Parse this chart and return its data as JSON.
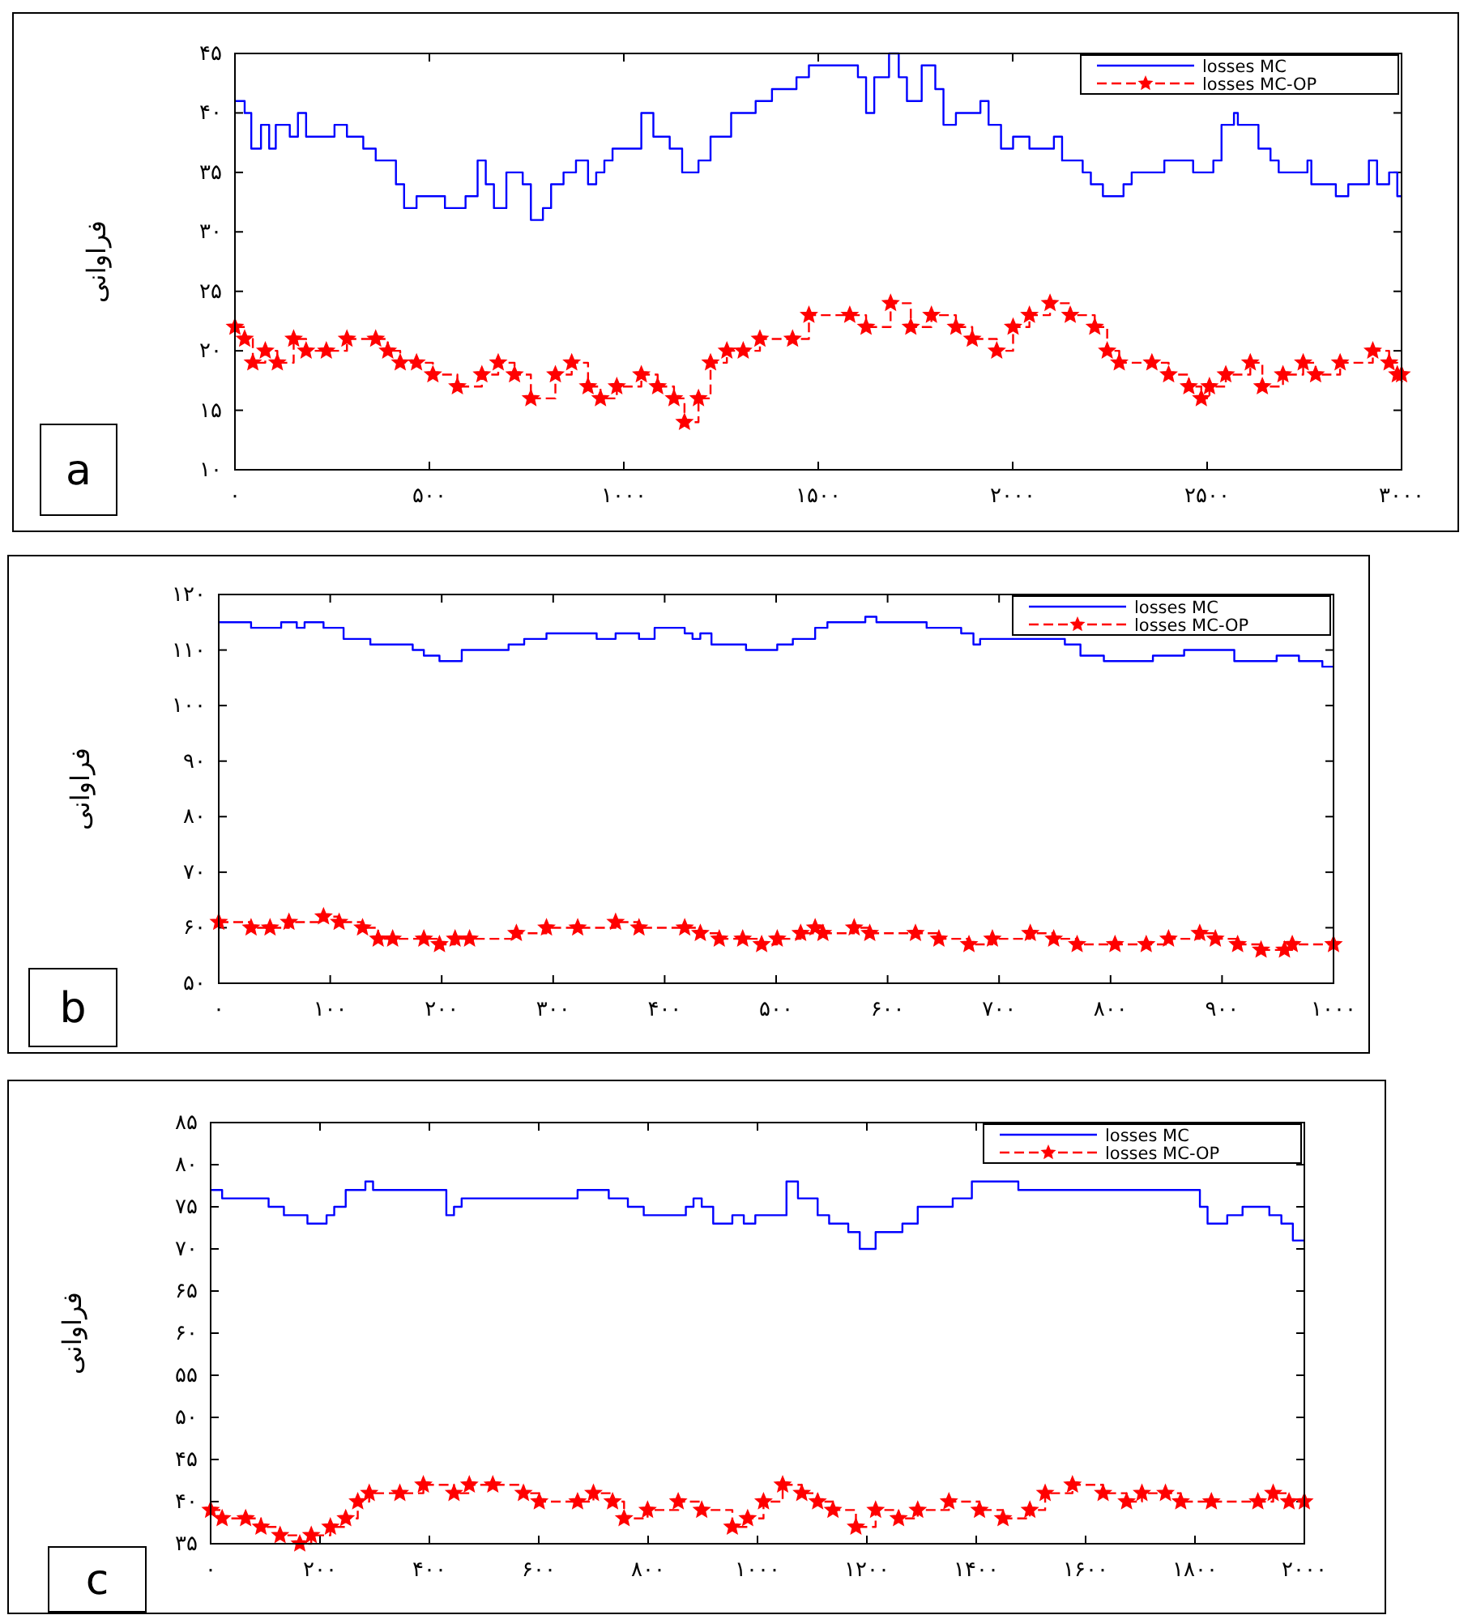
{
  "chart_data": [
    {
      "type": "step",
      "ylabel": "فراوانی",
      "annotations": [
        "a"
      ],
      "legend": "top right",
      "xlim": [
        0,
        3000
      ],
      "ylim": [
        10,
        45
      ],
      "xticks": [
        {
          "value": 0,
          "label": "۰"
        },
        {
          "value": 500,
          "label": "۵۰۰"
        },
        {
          "value": 1000,
          "label": "۱۰۰۰"
        },
        {
          "value": 1500,
          "label": "۱۵۰۰"
        },
        {
          "value": 2000,
          "label": "۲۰۰۰"
        },
        {
          "value": 2500,
          "label": "۲۵۰۰"
        },
        {
          "value": 3000,
          "label": "۳۰۰۰"
        }
      ],
      "yticks": [
        {
          "value": 10,
          "label": "۱۰"
        },
        {
          "value": 15,
          "label": "۱۵"
        },
        {
          "value": 20,
          "label": "۲۰"
        },
        {
          "value": 25,
          "label": "۲۵"
        },
        {
          "value": 30,
          "label": "۳۰"
        },
        {
          "value": 35,
          "label": "۳۵"
        },
        {
          "value": 40,
          "label": "۴۰"
        },
        {
          "value": 45,
          "label": "۴۵"
        }
      ],
      "series": [
        {
          "name": "losses MC",
          "color": "#0000ff",
          "line_style": "solid",
          "marker": "none",
          "x": [
            0,
            25,
            42,
            67,
            88,
            105,
            141,
            162,
            183,
            256,
            288,
            330,
            362,
            393,
            414,
            435,
            467,
            540,
            593,
            624,
            645,
            666,
            698,
            740,
            761,
            792,
            813,
            845,
            877,
            908,
            929,
            950,
            971,
            1045,
            1076,
            1118,
            1150,
            1192,
            1223,
            1276,
            1339,
            1381,
            1444,
            1476,
            1539,
            1602,
            1623,
            1644,
            1682,
            1707,
            1728,
            1766,
            1801,
            1822,
            1854,
            1917,
            1938,
            1970,
            2001,
            2043,
            2106,
            2127,
            2180,
            2201,
            2232,
            2285,
            2306,
            2390,
            2464,
            2516,
            2537,
            2569,
            2579,
            2632,
            2663,
            2684,
            2758,
            2768,
            2831,
            2863,
            2916,
            2937,
            2968,
            2989,
            3000
          ],
          "values": [
            41,
            40,
            37,
            39,
            37,
            39,
            38,
            40,
            38,
            39,
            38,
            37,
            36,
            36,
            34,
            32,
            33,
            32,
            33,
            36,
            34,
            32,
            35,
            34,
            31,
            32,
            34,
            35,
            36,
            34,
            35,
            36,
            37,
            40,
            38,
            37,
            35,
            36,
            38,
            40,
            41,
            42,
            43,
            44,
            44,
            43,
            40,
            43,
            45,
            43,
            41,
            44,
            42,
            39,
            40,
            41,
            39,
            37,
            38,
            37,
            38,
            36,
            35,
            34,
            33,
            34,
            35,
            36,
            35,
            36,
            39,
            40,
            39,
            37,
            36,
            35,
            36,
            34,
            33,
            34,
            36,
            34,
            35,
            33,
            33
          ]
        },
        {
          "name": "losses MC-OP",
          "color": "#ff0000",
          "line_style": "dashed",
          "marker": "star",
          "x": [
            0,
            25,
            46,
            78,
            109,
            151,
            183,
            235,
            288,
            362,
            393,
            425,
            467,
            509,
            572,
            635,
            677,
            719,
            761,
            824,
            866,
            908,
            940,
            982,
            1045,
            1087,
            1129,
            1156,
            1192,
            1223,
            1265,
            1307,
            1350,
            1434,
            1476,
            1581,
            1623,
            1686,
            1738,
            1791,
            1854,
            1896,
            1959,
            2001,
            2043,
            2096,
            2148,
            2211,
            2243,
            2274,
            2358,
            2401,
            2453,
            2485,
            2506,
            2548,
            2611,
            2642,
            2695,
            2747,
            2779,
            2842,
            2926,
            2968,
            2989,
            3000
          ],
          "values": [
            22,
            21,
            19,
            20,
            19,
            21,
            20,
            20,
            21,
            21,
            20,
            19,
            19,
            18,
            17,
            18,
            19,
            18,
            16,
            18,
            19,
            17,
            16,
            17,
            18,
            17,
            16,
            14,
            16,
            19,
            20,
            20,
            21,
            21,
            23,
            23,
            22,
            24,
            22,
            23,
            22,
            21,
            20,
            22,
            23,
            24,
            23,
            22,
            20,
            19,
            19,
            18,
            17,
            16,
            17,
            18,
            19,
            17,
            18,
            19,
            18,
            19,
            20,
            19,
            18,
            18
          ]
        }
      ]
    },
    {
      "type": "step",
      "ylabel": "فراوانی",
      "annotations": [
        "b"
      ],
      "legend": "top right",
      "xlim": [
        0,
        1000
      ],
      "ylim": [
        50,
        120
      ],
      "xticks": [
        {
          "value": 0,
          "label": "۰"
        },
        {
          "value": 100,
          "label": "۱۰۰"
        },
        {
          "value": 200,
          "label": "۲۰۰"
        },
        {
          "value": 300,
          "label": "۳۰۰"
        },
        {
          "value": 400,
          "label": "۴۰۰"
        },
        {
          "value": 500,
          "label": "۵۰۰"
        },
        {
          "value": 600,
          "label": "۶۰۰"
        },
        {
          "value": 700,
          "label": "۷۰۰"
        },
        {
          "value": 800,
          "label": "۸۰۰"
        },
        {
          "value": 900,
          "label": "۹۰۰"
        },
        {
          "value": 1000,
          "label": "۱۰۰۰"
        }
      ],
      "yticks": [
        {
          "value": 50,
          "label": "۵۰"
        },
        {
          "value": 60,
          "label": "۶۰"
        },
        {
          "value": 70,
          "label": "۷۰"
        },
        {
          "value": 80,
          "label": "۸۰"
        },
        {
          "value": 90,
          "label": "۹۰"
        },
        {
          "value": 100,
          "label": "۱۰۰"
        },
        {
          "value": 110,
          "label": "۱۱۰"
        },
        {
          "value": 120,
          "label": "۱۲۰"
        }
      ],
      "series": [
        {
          "name": "losses MC",
          "color": "#0000ff",
          "line_style": "solid",
          "marker": "none",
          "x": [
            0,
            29,
            56,
            70,
            77,
            94,
            112,
            136,
            174,
            184,
            198,
            218,
            260,
            274,
            294,
            339,
            356,
            377,
            391,
            418,
            425,
            432,
            442,
            456,
            473,
            501,
            515,
            535,
            546,
            570,
            580,
            590,
            635,
            666,
            677,
            683,
            728,
            759,
            773,
            794,
            838,
            866,
            894,
            911,
            928,
            949,
            969,
            990,
            1000
          ],
          "values": [
            115,
            114,
            115,
            114,
            115,
            114,
            112,
            111,
            110,
            109,
            108,
            110,
            111,
            112,
            113,
            112,
            113,
            112,
            114,
            113,
            112,
            113,
            111,
            111,
            110,
            111,
            112,
            114,
            115,
            115,
            116,
            115,
            114,
            113,
            111,
            112,
            112,
            111,
            109,
            108,
            109,
            110,
            110,
            108,
            108,
            109,
            108,
            107,
            107
          ]
        },
        {
          "name": "losses MC-OP",
          "color": "#ff0000",
          "line_style": "dashed",
          "marker": "star",
          "x": [
            0,
            29,
            46,
            63,
            94,
            108,
            129,
            143,
            156,
            184,
            198,
            212,
            225,
            267,
            294,
            322,
            356,
            377,
            418,
            432,
            449,
            470,
            487,
            501,
            522,
            535,
            542,
            570,
            584,
            625,
            646,
            673,
            694,
            728,
            749,
            770,
            804,
            832,
            852,
            880,
            894,
            914,
            935,
            956,
            963,
            1000
          ],
          "values": [
            61,
            60,
            60,
            61,
            62,
            61,
            60,
            58,
            58,
            58,
            57,
            58,
            58,
            59,
            60,
            60,
            61,
            60,
            60,
            59,
            58,
            58,
            57,
            58,
            59,
            60,
            59,
            60,
            59,
            59,
            58,
            57,
            58,
            59,
            58,
            57,
            57,
            57,
            58,
            59,
            58,
            57,
            56,
            56,
            57,
            57
          ]
        }
      ]
    },
    {
      "type": "step",
      "ylabel": "فراوانی",
      "annotations": [
        "c"
      ],
      "legend": "top right",
      "xlim": [
        0,
        2000
      ],
      "ylim": [
        35,
        85
      ],
      "xticks": [
        {
          "value": 0,
          "label": "۰"
        },
        {
          "value": 200,
          "label": "۲۰۰"
        },
        {
          "value": 400,
          "label": "۴۰۰"
        },
        {
          "value": 600,
          "label": "۶۰۰"
        },
        {
          "value": 800,
          "label": "۸۰۰"
        },
        {
          "value": 1000,
          "label": "۱۰۰۰"
        },
        {
          "value": 1200,
          "label": "۱۲۰۰"
        },
        {
          "value": 1400,
          "label": "۱۴۰۰"
        },
        {
          "value": 1600,
          "label": "۱۶۰۰"
        },
        {
          "value": 1800,
          "label": "۱۸۰۰"
        },
        {
          "value": 2000,
          "label": "۲۰۰۰"
        }
      ],
      "yticks": [
        {
          "value": 35,
          "label": "۳۵"
        },
        {
          "value": 40,
          "label": "۴۰"
        },
        {
          "value": 45,
          "label": "۴۵"
        },
        {
          "value": 50,
          "label": "۵۰"
        },
        {
          "value": 55,
          "label": "۵۵"
        },
        {
          "value": 60,
          "label": "۶۰"
        },
        {
          "value": 65,
          "label": "۶۵"
        },
        {
          "value": 70,
          "label": "۷۰"
        },
        {
          "value": 75,
          "label": "۷۵"
        },
        {
          "value": 80,
          "label": "۸۰"
        },
        {
          "value": 85,
          "label": "۸۵"
        }
      ],
      "series": [
        {
          "name": "losses MC",
          "color": "#0000ff",
          "line_style": "solid",
          "marker": "none",
          "x": [
            0,
            21,
            92,
            106,
            134,
            177,
            212,
            226,
            247,
            283,
            297,
            360,
            410,
            431,
            445,
            459,
            481,
            488,
            671,
            728,
            763,
            784,
            792,
            869,
            883,
            898,
            919,
            954,
            975,
            996,
            1039,
            1053,
            1074,
            1110,
            1131,
            1166,
            1187,
            1216,
            1265,
            1293,
            1357,
            1392,
            1477,
            1576,
            1788,
            1809,
            1823,
            1859,
            1887,
            1936,
            1958,
            1979,
            2000
          ],
          "values": [
            77,
            76,
            76,
            75,
            74,
            73,
            74,
            75,
            77,
            78,
            77,
            77,
            77,
            74,
            75,
            76,
            76,
            76,
            77,
            76,
            75,
            75,
            74,
            75,
            76,
            75,
            73,
            74,
            73,
            74,
            74,
            78,
            76,
            74,
            73,
            72,
            70,
            72,
            73,
            75,
            76,
            78,
            77,
            77,
            77,
            75,
            73,
            74,
            75,
            74,
            73,
            71,
            71
          ]
        },
        {
          "name": "losses MC-OP",
          "color": "#ff0000",
          "line_style": "dashed",
          "marker": "star",
          "x": [
            0,
            21,
            64,
            92,
            127,
            163,
            184,
            219,
            247,
            269,
            290,
            346,
            389,
            445,
            473,
            516,
            572,
            601,
            671,
            700,
            735,
            756,
            799,
            855,
            898,
            954,
            982,
            1011,
            1046,
            1081,
            1110,
            1138,
            1180,
            1216,
            1258,
            1293,
            1350,
            1406,
            1449,
            1498,
            1526,
            1576,
            1632,
            1675,
            1703,
            1746,
            1774,
            1830,
            1915,
            1943,
            1972,
            2000
          ],
          "values": [
            39,
            38,
            38,
            37,
            36,
            35,
            36,
            37,
            38,
            40,
            41,
            41,
            42,
            41,
            42,
            42,
            41,
            40,
            40,
            41,
            40,
            38,
            39,
            40,
            39,
            37,
            38,
            40,
            42,
            41,
            40,
            39,
            37,
            39,
            38,
            39,
            40,
            39,
            38,
            39,
            41,
            42,
            41,
            40,
            41,
            41,
            40,
            40,
            40,
            41,
            40,
            40
          ]
        }
      ]
    }
  ]
}
